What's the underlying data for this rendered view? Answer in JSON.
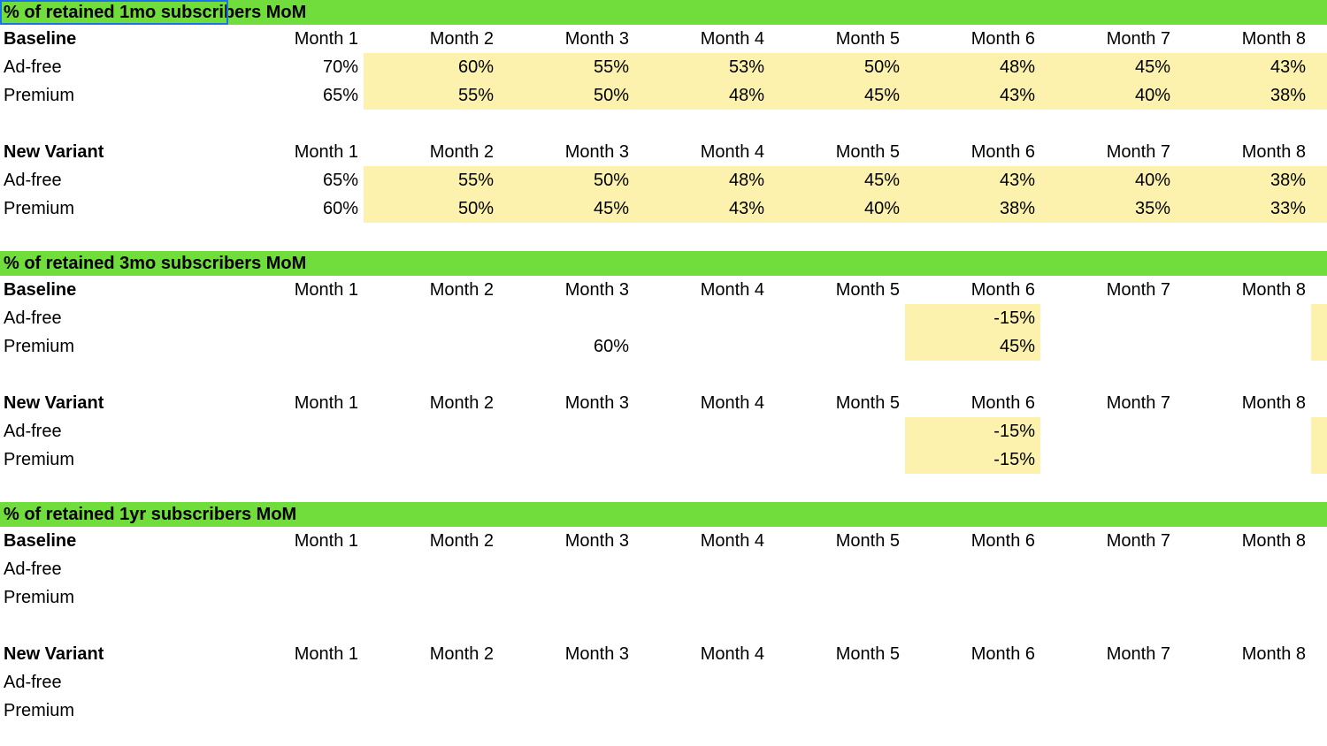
{
  "colors": {
    "section_header_bg": "#70dd3c",
    "highlight_bg": "#fcf2ae",
    "selection_border": "#1a73e8"
  },
  "columns": [
    "Month 1",
    "Month 2",
    "Month 3",
    "Month 4",
    "Month 5",
    "Month 6",
    "Month 7",
    "Month 8"
  ],
  "sections": [
    {
      "title": "% of retained 1mo subscribers MoM",
      "selected": true,
      "tables": [
        {
          "label": "Baseline",
          "highlight_cols": [
            2,
            3,
            4,
            5,
            6,
            7,
            8,
            9
          ],
          "rows": [
            {
              "label": "Ad-free",
              "values": [
                "70%",
                "60%",
                "55%",
                "53%",
                "50%",
                "48%",
                "45%",
                "43%"
              ]
            },
            {
              "label": "Premium",
              "values": [
                "65%",
                "55%",
                "50%",
                "48%",
                "45%",
                "43%",
                "40%",
                "38%"
              ]
            }
          ]
        },
        {
          "label": "New Variant",
          "highlight_cols": [
            2,
            3,
            4,
            5,
            6,
            7,
            8,
            9
          ],
          "rows": [
            {
              "label": "Ad-free",
              "values": [
                "65%",
                "55%",
                "50%",
                "48%",
                "45%",
                "43%",
                "40%",
                "38%"
              ]
            },
            {
              "label": "Premium",
              "values": [
                "60%",
                "50%",
                "45%",
                "43%",
                "40%",
                "38%",
                "35%",
                "33%"
              ]
            }
          ]
        }
      ]
    },
    {
      "title": "% of retained 3mo subscribers MoM",
      "selected": false,
      "tables": [
        {
          "label": "Baseline",
          "highlight_cols": [
            6,
            9
          ],
          "rows": [
            {
              "label": "Ad-free",
              "values": [
                "",
                "",
                "",
                "",
                "",
                "-15%",
                "",
                ""
              ]
            },
            {
              "label": "Premium",
              "values": [
                "",
                "",
                "60%",
                "",
                "",
                "45%",
                "",
                ""
              ]
            }
          ]
        },
        {
          "label": "New Variant",
          "highlight_cols": [
            6,
            9
          ],
          "rows": [
            {
              "label": "Ad-free",
              "values": [
                "",
                "",
                "",
                "",
                "",
                "-15%",
                "",
                ""
              ]
            },
            {
              "label": "Premium",
              "values": [
                "",
                "",
                "",
                "",
                "",
                "-15%",
                "",
                ""
              ]
            }
          ]
        }
      ]
    },
    {
      "title": "% of retained 1yr subscribers MoM",
      "selected": false,
      "tables": [
        {
          "label": "Baseline",
          "highlight_cols": [],
          "rows": [
            {
              "label": "Ad-free",
              "values": [
                "",
                "",
                "",
                "",
                "",
                "",
                "",
                ""
              ]
            },
            {
              "label": "Premium",
              "values": [
                "",
                "",
                "",
                "",
                "",
                "",
                "",
                ""
              ]
            }
          ]
        },
        {
          "label": "New Variant",
          "highlight_cols": [],
          "rows": [
            {
              "label": "Ad-free",
              "values": [
                "",
                "",
                "",
                "",
                "",
                "",
                "",
                ""
              ]
            },
            {
              "label": "Premium",
              "values": [
                "",
                "",
                "",
                "",
                "",
                "",
                "",
                ""
              ]
            }
          ]
        }
      ]
    }
  ]
}
